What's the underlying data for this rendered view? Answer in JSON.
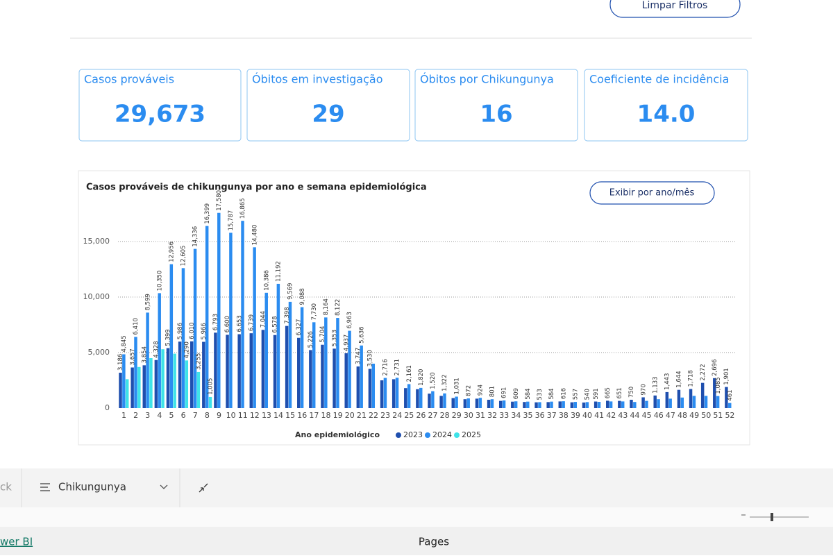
{
  "header": {
    "button": "Limpar Filtros"
  },
  "kpis": [
    {
      "label": "Casos prováveis",
      "value": "29,673"
    },
    {
      "label": "Óbitos em investigação",
      "value": "29"
    },
    {
      "label": "Óbitos por Chikungunya",
      "value": "16"
    },
    {
      "label": "Coeficiente de incidência",
      "value": "14.0"
    }
  ],
  "chart_data": {
    "type": "bar",
    "title": "Casos prováveis de chikungunya por ano e semana epidemiológica",
    "button": "Exibir por ano/mês",
    "legend_title": "Ano epidemiológico",
    "categories": [
      "1",
      "2",
      "3",
      "4",
      "5",
      "6",
      "7",
      "8",
      "9",
      "10",
      "11",
      "12",
      "13",
      "14",
      "15",
      "16",
      "17",
      "18",
      "19",
      "20",
      "21",
      "22",
      "23",
      "24",
      "25",
      "26",
      "27",
      "28",
      "29",
      "30",
      "31",
      "32",
      "33",
      "34",
      "35",
      "36",
      "37",
      "38",
      "39",
      "40",
      "41",
      "42",
      "43",
      "44",
      "45",
      "46",
      "47",
      "48",
      "49",
      "50",
      "51",
      "52"
    ],
    "series": [
      {
        "name": "2023",
        "color": "#1f4fae",
        "values": [
          3186,
          3657,
          3854,
          4328,
          5399,
          5986,
          6010,
          5966,
          6793,
          6600,
          6653,
          6739,
          7044,
          6578,
          7398,
          6327,
          5226,
          5704,
          5353,
          4937,
          3747,
          3530,
          2500,
          2600,
          1800,
          1700,
          1300,
          1100,
          900,
          800,
          850,
          750,
          650,
          580,
          550,
          520,
          540,
          600,
          520,
          500,
          591,
          665,
          651,
          750,
          970,
          1133,
          1443,
          1644,
          1718,
          2272,
          2696,
          1901
        ],
        "value_labels": [
          "3,186",
          "3,657",
          "3,854",
          "4,328",
          "5,399",
          "5,986",
          "6,010",
          "5,966",
          "6,793",
          "6,600",
          "6,653",
          "6,739",
          "7,044",
          "6,578",
          "7,398",
          "6,327",
          "5,226",
          "5,704",
          "5,353",
          "4,937",
          "3,747",
          "3,530",
          null,
          null,
          null,
          null,
          null,
          null,
          null,
          null,
          null,
          null,
          null,
          null,
          null,
          null,
          null,
          null,
          null,
          null,
          "591",
          "665",
          "651",
          "750",
          "970",
          "1,133",
          "1,443",
          "1,644",
          "1,718",
          "2,272",
          "2,696",
          "1,901"
        ]
      },
      {
        "name": "2024",
        "color": "#2b8cf0",
        "values": [
          4845,
          6410,
          8599,
          10350,
          12956,
          12605,
          14336,
          16399,
          17580,
          15787,
          16865,
          14480,
          10386,
          11192,
          9569,
          9088,
          7730,
          8164,
          8122,
          6963,
          5636,
          4000,
          2716,
          2731,
          2161,
          1820,
          1520,
          1322,
          1031,
          872,
          924,
          801,
          691,
          609,
          584,
          533,
          584,
          616,
          557,
          540,
          560,
          600,
          600,
          550,
          650,
          800,
          850,
          950,
          1100,
          1100,
          1085,
          461
        ],
        "value_labels": [
          "4,845",
          "6,410",
          "8,599",
          "10,350",
          "12,956",
          "12,605",
          "14,336",
          "16,399",
          "17,580",
          "15,787",
          "16,865",
          "14,480",
          "10,386",
          "11,192",
          "9,569",
          "9,088",
          "7,730",
          "8,164",
          "8,122",
          "6,963",
          "5,636",
          null,
          "2,716",
          "2,731",
          "2,161",
          "1,820",
          "1,520",
          "1,322",
          "1,031",
          "872",
          "924",
          "801",
          "691",
          "609",
          "584",
          "533",
          "584",
          "616",
          "557",
          "540",
          null,
          null,
          null,
          null,
          null,
          null,
          null,
          null,
          null,
          null,
          "1,085",
          "461"
        ]
      },
      {
        "name": "2025",
        "color": "#3fe3e8",
        "values": [
          2600,
          3700,
          4500,
          5300,
          4900,
          4290,
          3255,
          1005,
          null,
          null,
          null,
          null,
          null,
          null,
          null,
          null,
          null,
          null,
          null,
          null,
          null,
          null,
          null,
          null,
          null,
          null,
          null,
          null,
          null,
          null,
          null,
          null,
          null,
          null,
          null,
          null,
          null,
          null,
          null,
          null,
          null,
          null,
          null,
          null,
          null,
          null,
          null,
          null,
          null,
          null,
          null,
          null
        ],
        "value_labels": [
          null,
          null,
          null,
          null,
          null,
          "4,290",
          "3,255",
          "1,005",
          null,
          null,
          null,
          null,
          null,
          null,
          null,
          null,
          null,
          null,
          null,
          null,
          null,
          null,
          null,
          null,
          null,
          null,
          null,
          null,
          null,
          null,
          null,
          null,
          null,
          null,
          null,
          null,
          null,
          null,
          null,
          null,
          null,
          null,
          null,
          null,
          null,
          null,
          null,
          null,
          null,
          null,
          null,
          null
        ]
      }
    ],
    "ylim": [
      0,
      18000
    ],
    "yticks": [
      0,
      {
        "value": 5000,
        "label": "5,000"
      },
      {
        "value": 10000,
        "label": "10,000"
      },
      {
        "value": 15000,
        "label": "15,000"
      }
    ],
    "grid": true
  },
  "footer": {
    "back": "ck",
    "page": "Chikungunya",
    "brand": "wer BI",
    "pages": "Pages"
  }
}
